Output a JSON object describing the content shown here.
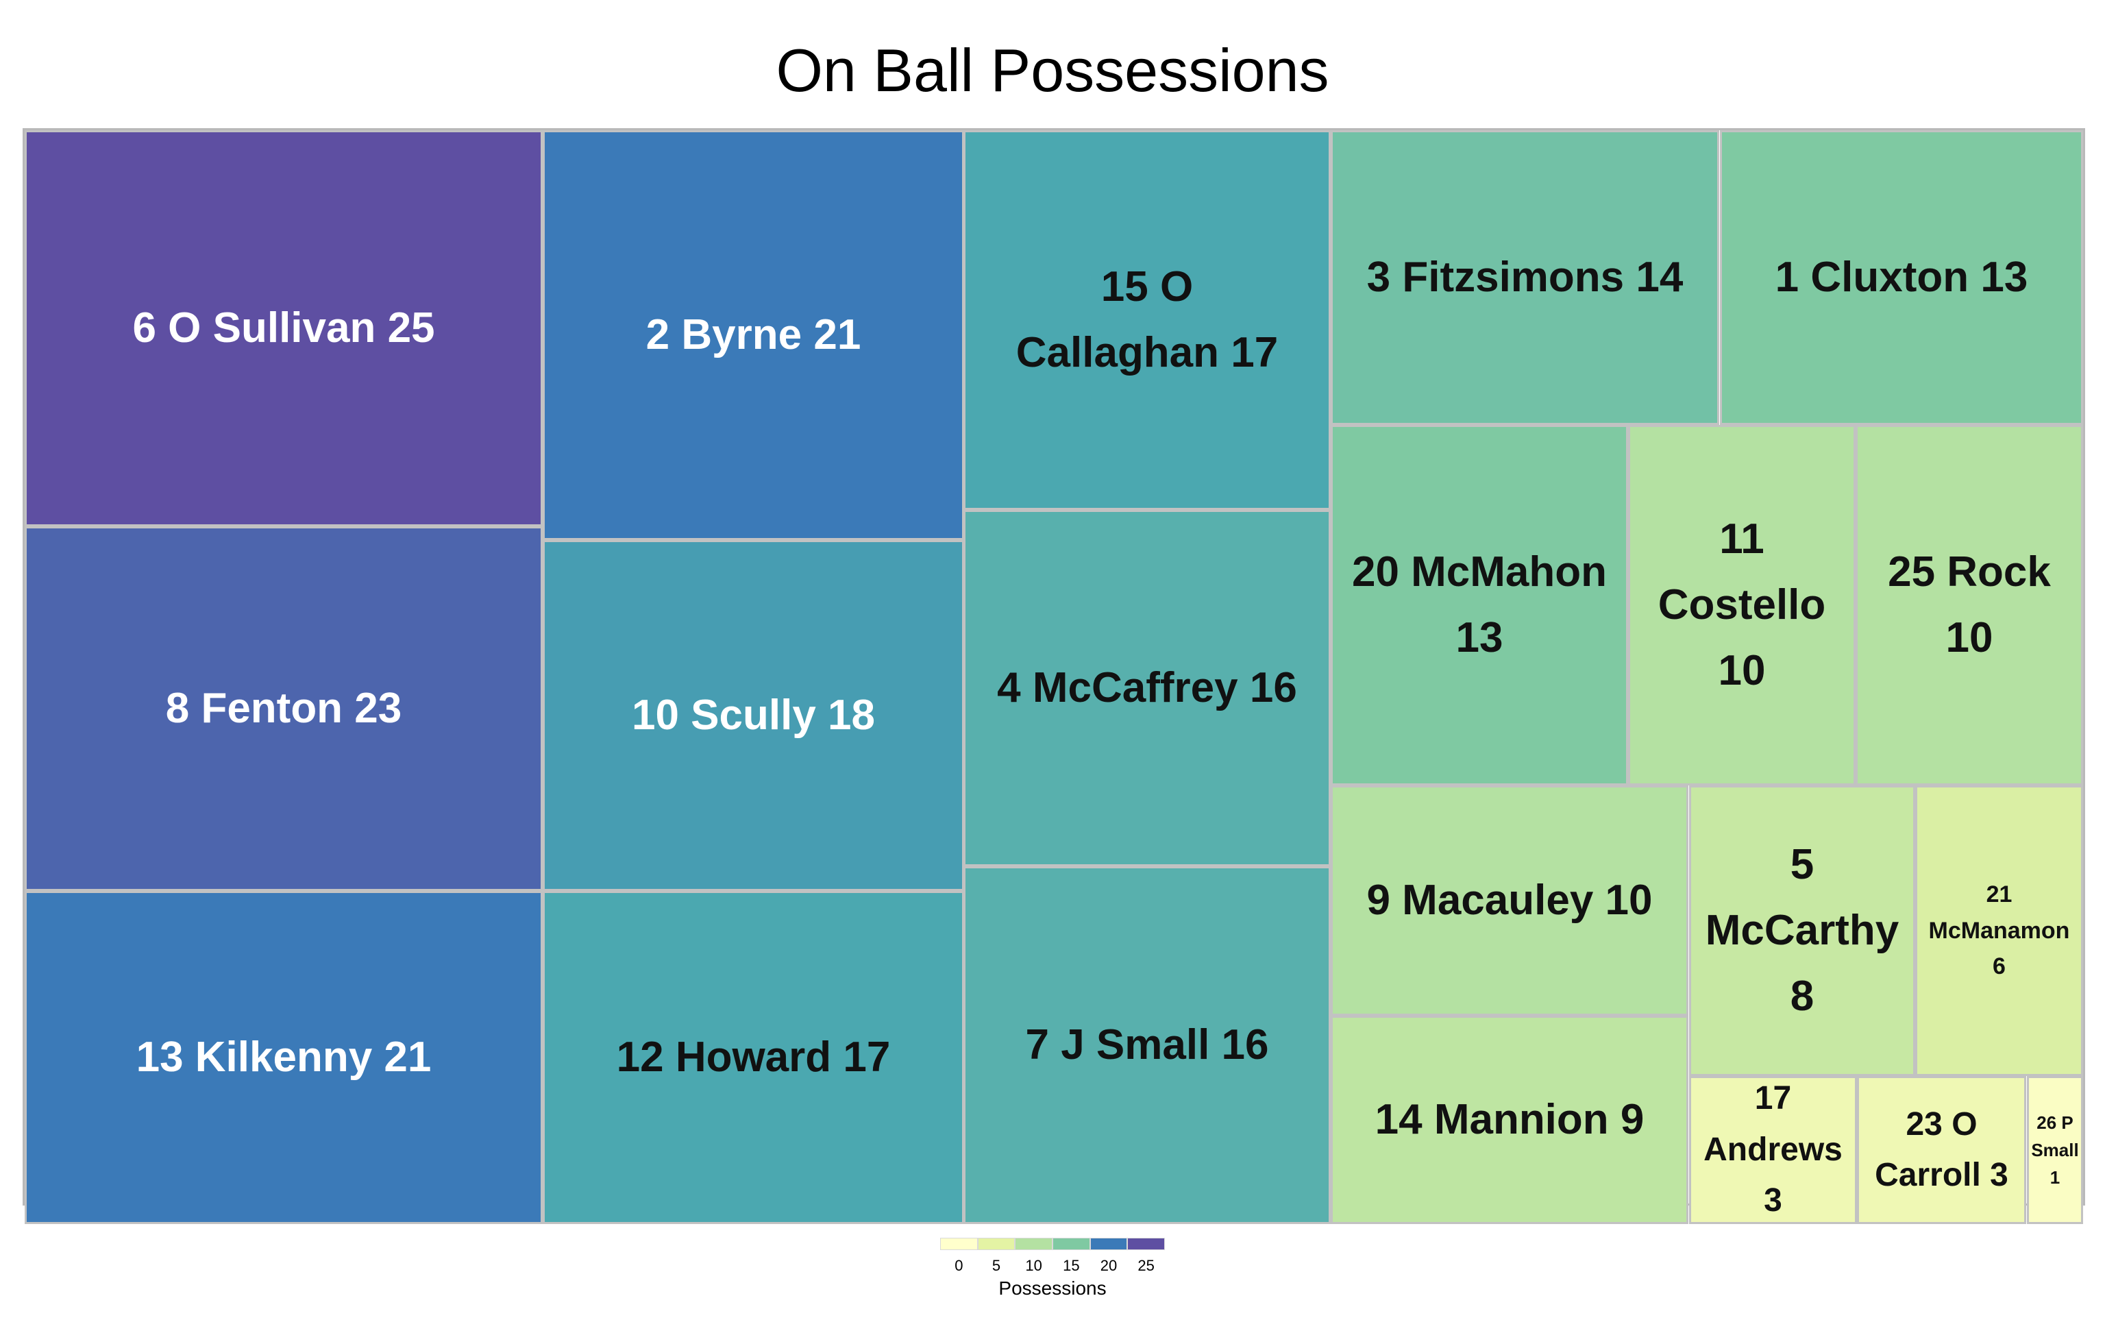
{
  "chart_data": {
    "type": "treemap",
    "title": "On Ball Possessions",
    "series": [
      {
        "name": "6 O Sullivan",
        "value": 25,
        "label": "6 O Sullivan  25"
      },
      {
        "name": "8 Fenton",
        "value": 23,
        "label": "8 Fenton  23"
      },
      {
        "name": "13 Kilkenny",
        "value": 21,
        "label": "13 Kilkenny 21"
      },
      {
        "name": "2 Byrne",
        "value": 21,
        "label": "2 Byrne 21"
      },
      {
        "name": "10 Scully",
        "value": 18,
        "label": "10 Scully  18"
      },
      {
        "name": "12 Howard",
        "value": 17,
        "label": "12 Howard  17"
      },
      {
        "name": "15 O Callaghan",
        "value": 17,
        "label": "15 O\nCallaghan 17"
      },
      {
        "name": "4 McCaffrey",
        "value": 16,
        "label": "4 McCaffrey  16"
      },
      {
        "name": "7 J Small",
        "value": 16,
        "label": "7 J Small 16"
      },
      {
        "name": "3 Fitzsimons",
        "value": 14,
        "label": "3 Fitzsimons  14"
      },
      {
        "name": "1 Cluxton",
        "value": 13,
        "label": "1 Cluxton 13"
      },
      {
        "name": "20 McMahon",
        "value": 13,
        "label": "20 McMahon\n13"
      },
      {
        "name": "11 Costello",
        "value": 10,
        "label": "11\nCostello\n10"
      },
      {
        "name": "25 Rock",
        "value": 10,
        "label": "25 Rock\n10"
      },
      {
        "name": "9 Macauley",
        "value": 10,
        "label": "9 Macauley 10"
      },
      {
        "name": "14 Mannion",
        "value": 9,
        "label": "14 Mannion  9"
      },
      {
        "name": "5 McCarthy",
        "value": 8,
        "label": "5\nMcCarthy\n8"
      },
      {
        "name": "21 McManamon",
        "value": 6,
        "label": "21\nMcManamon\n6"
      },
      {
        "name": "17 Andrews",
        "value": 3,
        "label": "17\nAndrews\n3"
      },
      {
        "name": "23 O Carroll",
        "value": 3,
        "label": "23 O\nCarroll 3"
      },
      {
        "name": "26 P Small",
        "value": 1,
        "label": "26 P\nSmall\n1"
      }
    ],
    "legend": {
      "title": "Possessions",
      "ticks": [
        "0",
        "5",
        "10",
        "15",
        "20",
        "25"
      ],
      "colors": [
        "#ffffcc",
        "#e4f3a4",
        "#b4e1a2",
        "#7fc9a2",
        "#43a0b6",
        "#3b7ab8",
        "#5e4fa2"
      ]
    }
  }
}
